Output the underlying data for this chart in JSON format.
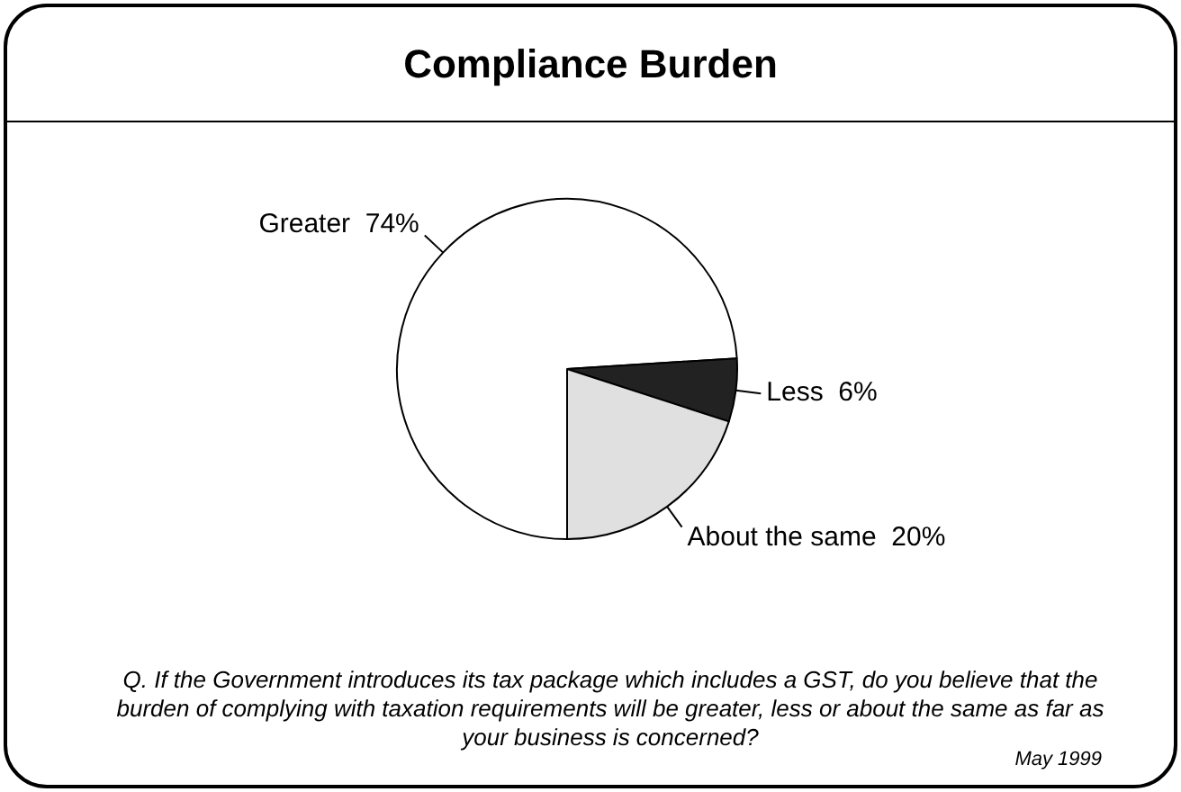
{
  "chart_data": {
    "type": "pie",
    "title": "Compliance Burden",
    "categories": [
      "Greater",
      "Less",
      "About the same"
    ],
    "values": [
      74,
      6,
      20
    ],
    "value_labels": [
      "74%",
      "6%",
      "20%"
    ],
    "colors": [
      "#ffffff",
      "#222222",
      "#e0e0e0"
    ],
    "legend": false,
    "annotations": [
      "Q. If the Government introduces its tax package which includes a GST, do you believe that the burden of complying with taxation requirements will be greater, less or about the same as far as your business is concerned?",
      "May 1999"
    ]
  }
}
